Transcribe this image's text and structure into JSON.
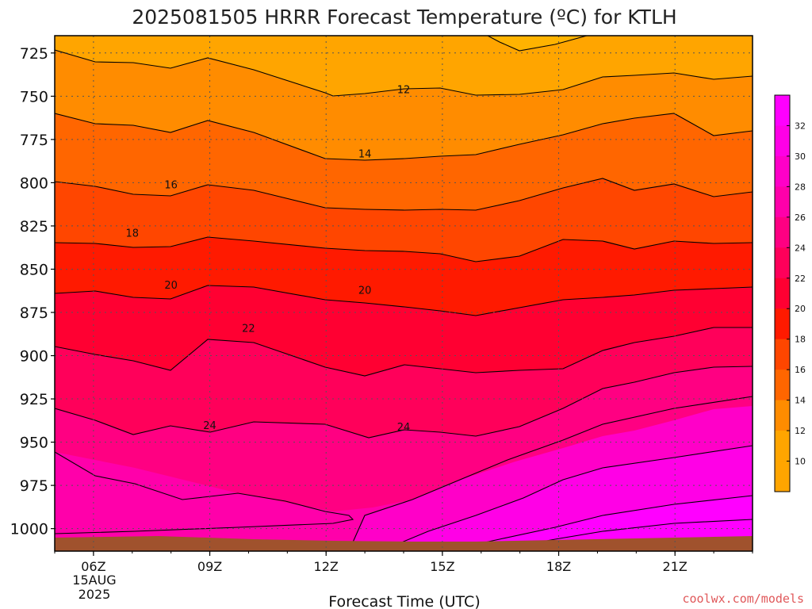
{
  "chart_data": {
    "type": "heatmap",
    "title": "2025081505 HRRR Forecast Temperature (ºC) for KTLH",
    "xlabel": "Forecast Time (UTC)",
    "ylabel": "",
    "credit": "coolwx.com/models",
    "date_lines": [
      "15AUG",
      "2025"
    ],
    "x_ticks": [
      "06Z",
      "09Z",
      "12Z",
      "15Z",
      "18Z",
      "21Z"
    ],
    "x_range_hours": [
      5,
      23
    ],
    "y_ticks": [
      725,
      750,
      775,
      800,
      825,
      850,
      875,
      900,
      925,
      950,
      975,
      1000
    ],
    "y_range_hpa": [
      715,
      1013
    ],
    "grid": true,
    "colorbar_ticks": [
      10,
      12,
      14,
      16,
      18,
      20,
      22,
      24,
      26,
      28,
      30,
      32
    ],
    "colors": {
      "t10": "#ffa500",
      "t12": "#ff8c00",
      "t14": "#ff6600",
      "t16": "#ff4600",
      "t18": "#ff1a00",
      "t20": "#ff0032",
      "t22": "#ff005a",
      "t24": "#ff0082",
      "t26": "#ff00aa",
      "t28": "#ff00c8",
      "t30": "#ff00e6",
      "t32": "#ff00ff",
      "ground": "#a0522d"
    },
    "contour_labels": [
      {
        "value": "12",
        "hour": 14,
        "hpa": 746
      },
      {
        "value": "14",
        "hour": 13,
        "hpa": 783
      },
      {
        "value": "16",
        "hour": 8,
        "hpa": 801
      },
      {
        "value": "18",
        "hour": 7,
        "hpa": 829
      },
      {
        "value": "20",
        "hour": 8,
        "hpa": 859
      },
      {
        "value": "20",
        "hour": 13,
        "hpa": 862
      },
      {
        "value": "22",
        "hour": 10,
        "hpa": 884
      },
      {
        "value": "24",
        "hour": 9,
        "hpa": 940
      },
      {
        "value": "24",
        "hour": 14,
        "hpa": 941
      }
    ]
  }
}
